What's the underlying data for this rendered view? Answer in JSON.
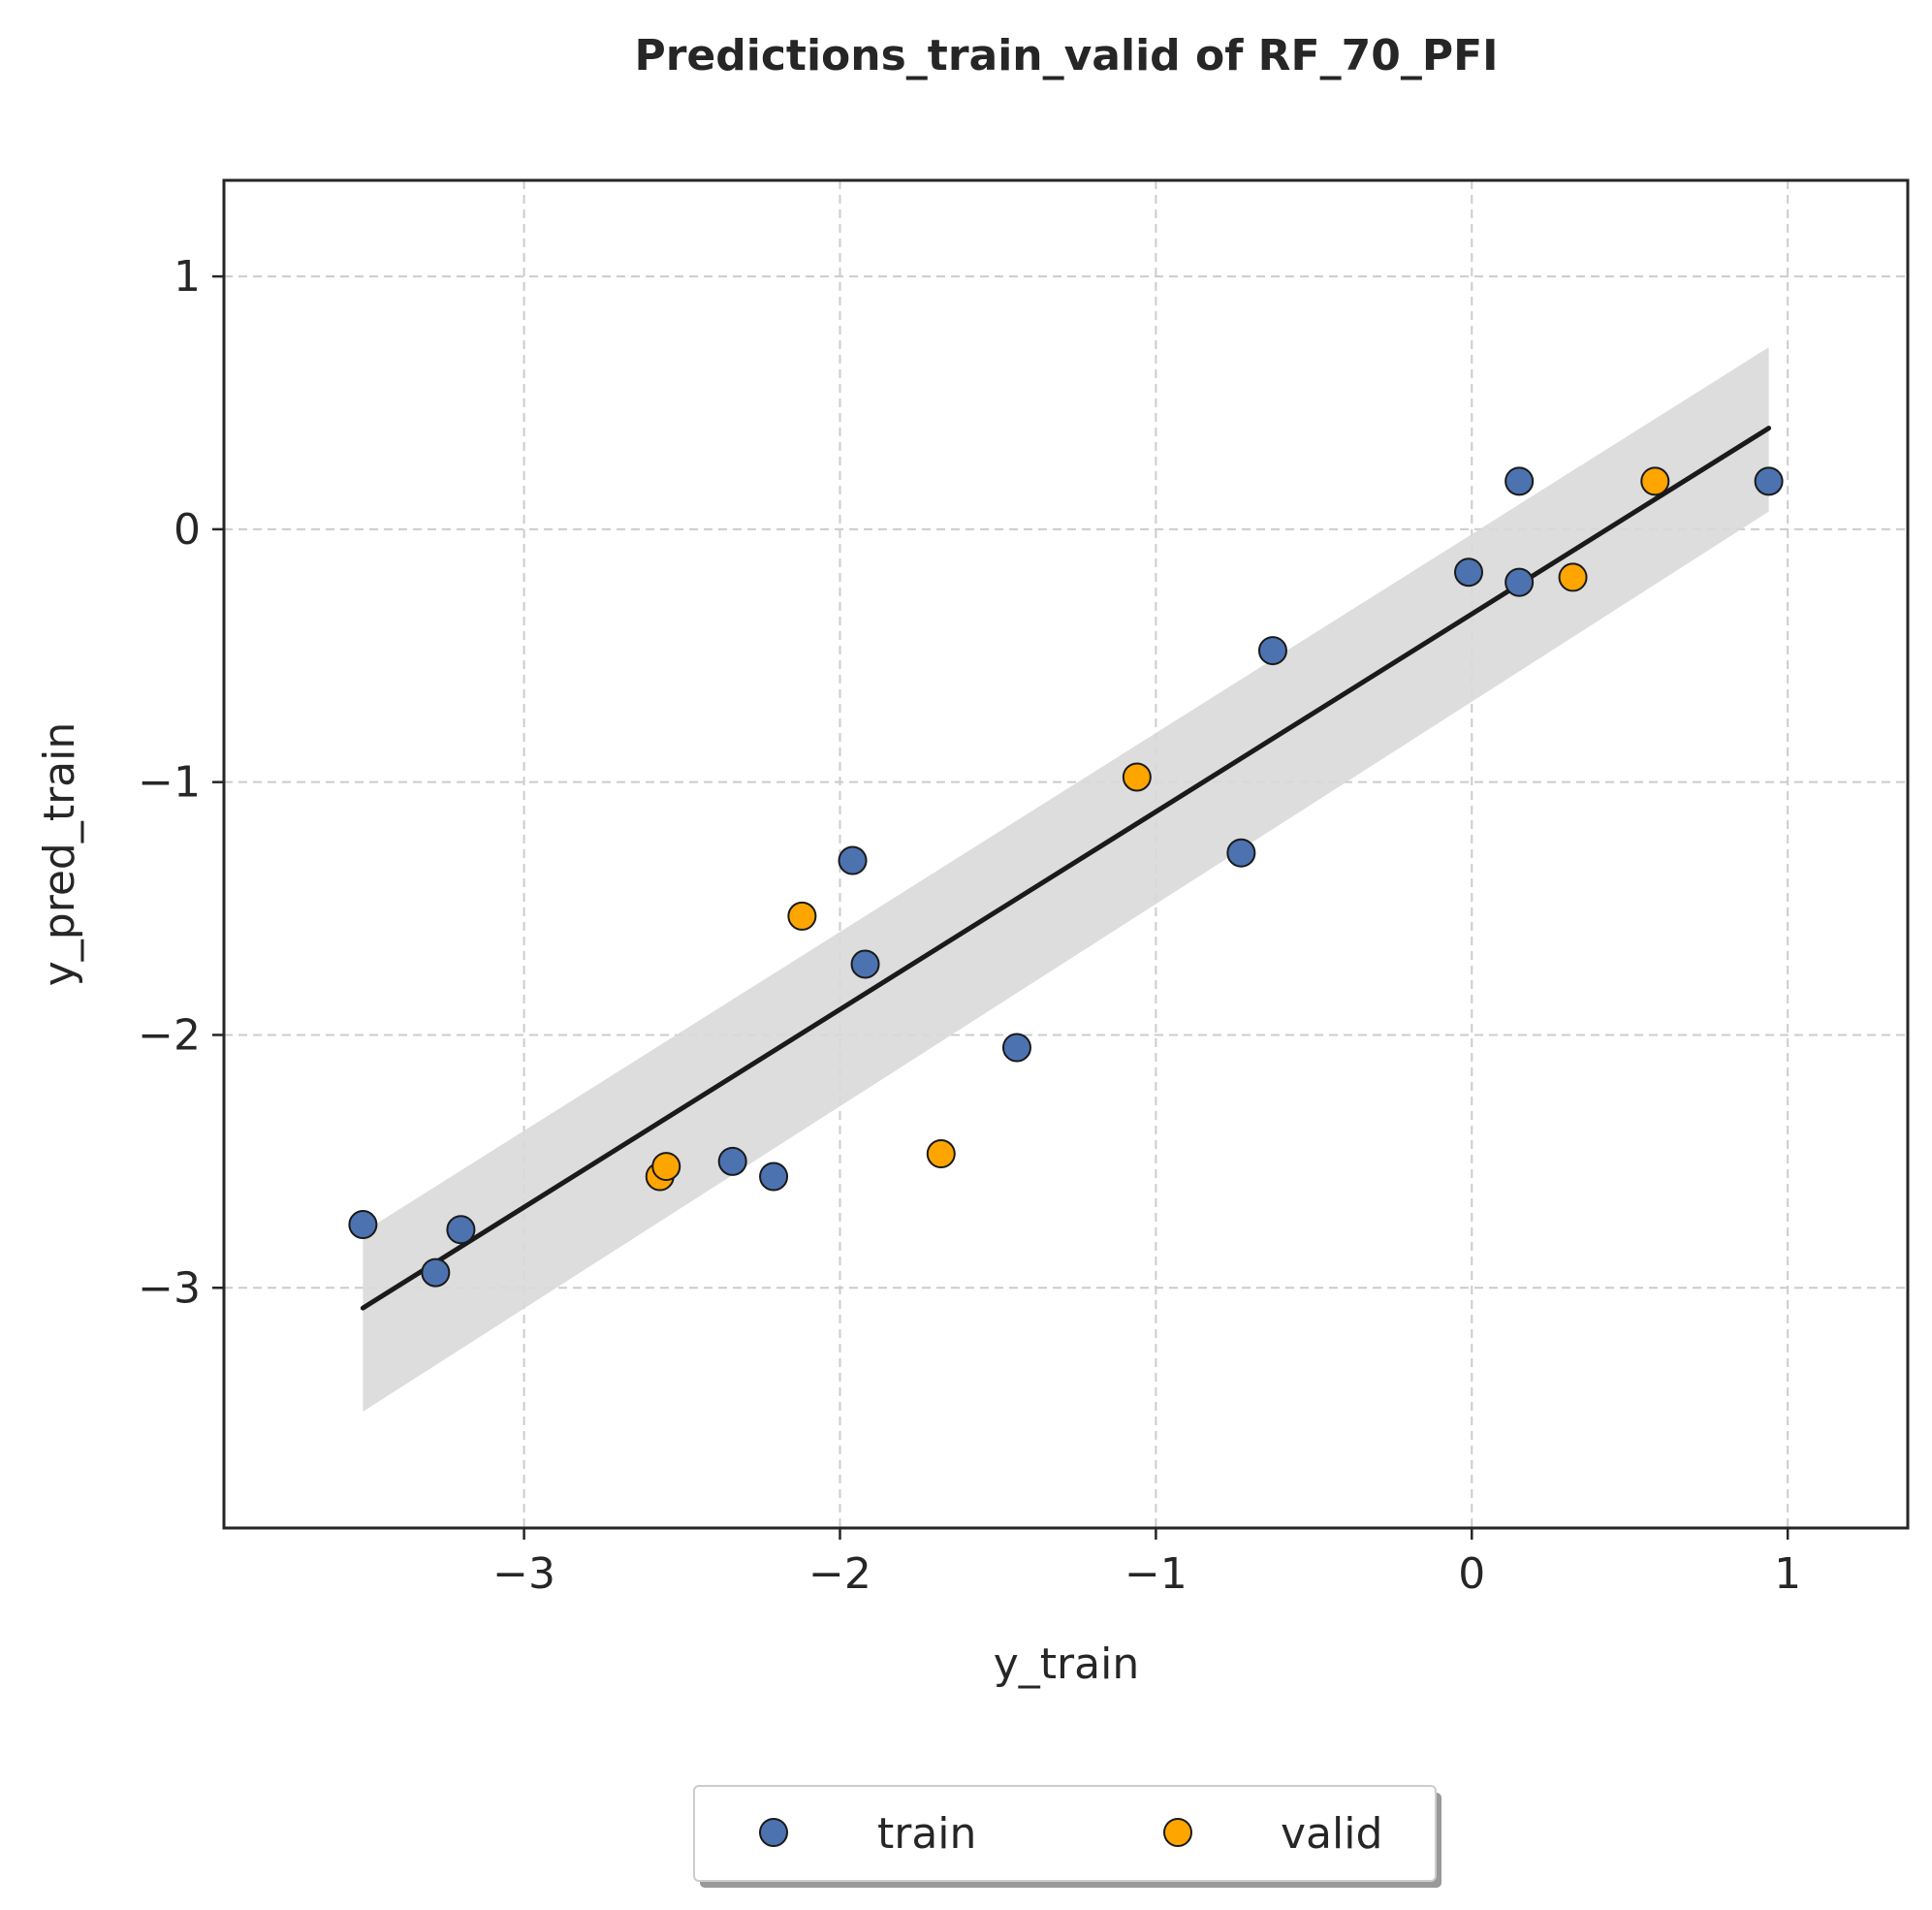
{
  "chart_data": {
    "type": "scatter",
    "title": "Predictions_train_valid of RF_70_PFI",
    "xlabel": "y_train",
    "ylabel": "y_pred_train",
    "xlim": [
      -3.95,
      1.38
    ],
    "ylim": [
      -3.95,
      1.38
    ],
    "xticks": [
      -3,
      -2,
      -1,
      0,
      1
    ],
    "yticks": [
      -3,
      -2,
      -1,
      0,
      1
    ],
    "xtick_labels": [
      "−3",
      "−2",
      "−1",
      "0",
      "1"
    ],
    "ytick_labels": [
      "−3",
      "−2",
      "−1",
      "0",
      "1"
    ],
    "grid": true,
    "legend_position": "bottom-center",
    "series": [
      {
        "name": "train",
        "color": "#4c72b0",
        "points": [
          [
            -3.51,
            -2.75
          ],
          [
            -3.28,
            -2.94
          ],
          [
            -3.2,
            -2.77
          ],
          [
            -2.34,
            -2.5
          ],
          [
            -2.21,
            -2.56
          ],
          [
            -1.96,
            -1.31
          ],
          [
            -1.92,
            -1.72
          ],
          [
            -1.44,
            -2.05
          ],
          [
            -0.73,
            -1.28
          ],
          [
            -0.63,
            -0.48
          ],
          [
            -0.01,
            -0.17
          ],
          [
            0.15,
            -0.21
          ],
          [
            0.15,
            0.19
          ],
          [
            0.94,
            0.19
          ]
        ]
      },
      {
        "name": "valid",
        "color": "#ffa500",
        "points": [
          [
            -2.57,
            -2.56
          ],
          [
            -2.55,
            -2.52
          ],
          [
            -2.12,
            -1.53
          ],
          [
            -1.68,
            -2.47
          ],
          [
            -1.06,
            -0.98
          ],
          [
            0.32,
            -0.19
          ],
          [
            0.58,
            0.19
          ]
        ]
      }
    ],
    "regression": {
      "color": "#1a1a1a",
      "x_range": [
        -3.51,
        0.94
      ],
      "line_y": [
        -3.08,
        0.4
      ],
      "band_lower": [
        -3.49,
        0.07
      ],
      "band_upper": [
        -2.78,
        0.72
      ],
      "band_color": "#d9d9d9"
    }
  }
}
